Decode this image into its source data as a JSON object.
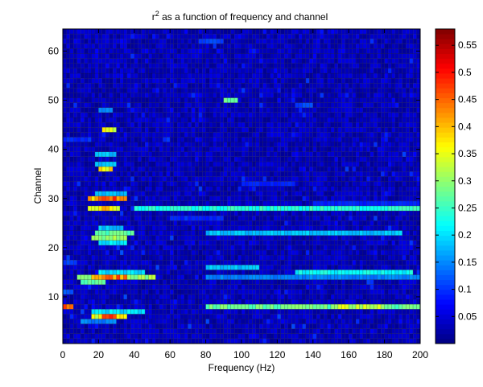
{
  "chart_data": {
    "type": "heatmap",
    "title": "r² as a function of frequency and channel",
    "title_base": "r",
    "title_sup": "2",
    "title_rest": " as a function of frequency and channel",
    "xlabel": "Frequency (Hz)",
    "ylabel": "Channel",
    "xlim": [
      0,
      200
    ],
    "ylim": [
      0.5,
      64.5
    ],
    "x_bin_hz": 2,
    "x_ticks": [
      0,
      20,
      40,
      60,
      80,
      100,
      120,
      140,
      160,
      180,
      200
    ],
    "x_tick_labels": [
      "0",
      "20",
      "40",
      "60",
      "80",
      "100",
      "120",
      "140",
      "160",
      "180",
      "200"
    ],
    "y_ticks": [
      10,
      20,
      30,
      40,
      50,
      60
    ],
    "y_tick_labels": [
      "10",
      "20",
      "30",
      "40",
      "50",
      "60"
    ],
    "colorbar": {
      "colormap": "jet",
      "range": [
        0,
        0.58
      ],
      "ticks": [
        0.05,
        0.1,
        0.15,
        0.2,
        0.25,
        0.3,
        0.35,
        0.4,
        0.45,
        0.5,
        0.55
      ],
      "tick_labels": [
        "0.05",
        "0.1",
        "0.15",
        "0.2",
        "0.25",
        "0.3",
        "0.35",
        "0.4",
        "0.45",
        "0.5",
        "0.55"
      ]
    },
    "background_level": 0.03,
    "bands": [
      {
        "channel": 8,
        "freq_from": 0,
        "freq_to": 6,
        "value": 0.48
      },
      {
        "channel": 8,
        "freq_from": 80,
        "freq_to": 200,
        "value": 0.3
      },
      {
        "channel": 8,
        "freq_from": 150,
        "freq_to": 180,
        "value": 0.36
      },
      {
        "channel": 6,
        "freq_from": 16,
        "freq_to": 36,
        "value": 0.38
      },
      {
        "channel": 6,
        "freq_from": 22,
        "freq_to": 30,
        "value": 0.52
      },
      {
        "channel": 7,
        "freq_from": 16,
        "freq_to": 46,
        "value": 0.22
      },
      {
        "channel": 5,
        "freq_from": 10,
        "freq_to": 30,
        "value": 0.16
      },
      {
        "channel": 14,
        "freq_from": 8,
        "freq_to": 52,
        "value": 0.33
      },
      {
        "channel": 14,
        "freq_from": 16,
        "freq_to": 36,
        "value": 0.48
      },
      {
        "channel": 14,
        "freq_from": 80,
        "freq_to": 200,
        "value": 0.16
      },
      {
        "channel": 13,
        "freq_from": 10,
        "freq_to": 24,
        "value": 0.3
      },
      {
        "channel": 15,
        "freq_from": 20,
        "freq_to": 46,
        "value": 0.22
      },
      {
        "channel": 15,
        "freq_from": 130,
        "freq_to": 196,
        "value": 0.24
      },
      {
        "channel": 16,
        "freq_from": 80,
        "freq_to": 110,
        "value": 0.2
      },
      {
        "channel": 22,
        "freq_from": 16,
        "freq_to": 36,
        "value": 0.33
      },
      {
        "channel": 23,
        "freq_from": 18,
        "freq_to": 40,
        "value": 0.3
      },
      {
        "channel": 23,
        "freq_from": 80,
        "freq_to": 190,
        "value": 0.2
      },
      {
        "channel": 21,
        "freq_from": 20,
        "freq_to": 36,
        "value": 0.22
      },
      {
        "channel": 24,
        "freq_from": 20,
        "freq_to": 34,
        "value": 0.2
      },
      {
        "channel": 28,
        "freq_from": 14,
        "freq_to": 32,
        "value": 0.4
      },
      {
        "channel": 28,
        "freq_from": 22,
        "freq_to": 26,
        "value": 0.46
      },
      {
        "channel": 28,
        "freq_from": 40,
        "freq_to": 200,
        "value": 0.26
      },
      {
        "channel": 30,
        "freq_from": 14,
        "freq_to": 36,
        "value": 0.44
      },
      {
        "channel": 30,
        "freq_from": 20,
        "freq_to": 34,
        "value": 0.5
      },
      {
        "channel": 31,
        "freq_from": 18,
        "freq_to": 36,
        "value": 0.2
      },
      {
        "channel": 29,
        "freq_from": 140,
        "freq_to": 200,
        "value": 0.1
      },
      {
        "channel": 36,
        "freq_from": 20,
        "freq_to": 28,
        "value": 0.4
      },
      {
        "channel": 37,
        "freq_from": 18,
        "freq_to": 30,
        "value": 0.2
      },
      {
        "channel": 39,
        "freq_from": 18,
        "freq_to": 30,
        "value": 0.2
      },
      {
        "channel": 44,
        "freq_from": 22,
        "freq_to": 30,
        "value": 0.38
      },
      {
        "channel": 48,
        "freq_from": 20,
        "freq_to": 28,
        "value": 0.16
      },
      {
        "channel": 50,
        "freq_from": 90,
        "freq_to": 98,
        "value": 0.3
      },
      {
        "channel": 49,
        "freq_from": 130,
        "freq_to": 140,
        "value": 0.12
      },
      {
        "channel": 62,
        "freq_from": 76,
        "freq_to": 90,
        "value": 0.12
      },
      {
        "channel": 11,
        "freq_from": 0,
        "freq_to": 6,
        "value": 0.14
      },
      {
        "channel": 17,
        "freq_from": 0,
        "freq_to": 8,
        "value": 0.12
      },
      {
        "channel": 26,
        "freq_from": 60,
        "freq_to": 90,
        "value": 0.1
      },
      {
        "channel": 33,
        "freq_from": 100,
        "freq_to": 130,
        "value": 0.1
      },
      {
        "channel": 42,
        "freq_from": 0,
        "freq_to": 16,
        "value": 0.1
      }
    ]
  }
}
